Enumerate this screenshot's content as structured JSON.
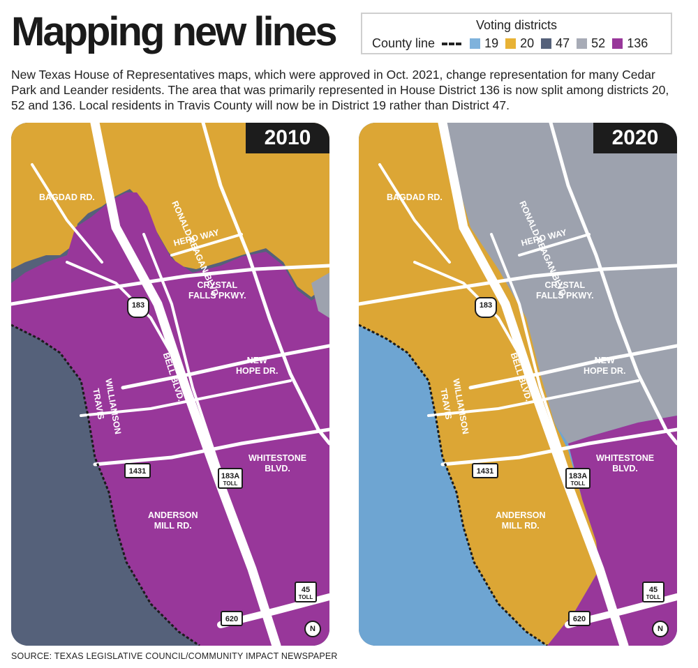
{
  "title": "Mapping new lines",
  "intro": "New Texas House of Representatives maps, which were approved in Oct. 2021, change representation for many Cedar Park and Leander residents. The area that was primarily represented in House District 136 is now split among districts 20, 52 and 136. Local residents in Travis County will now be in District 19 rather than District 47.",
  "legend": {
    "title": "Voting districts",
    "county_line_label": "County line",
    "districts": [
      {
        "label": "19",
        "color": "#7fb2dc"
      },
      {
        "label": "20",
        "color": "#e8b235"
      },
      {
        "label": "47",
        "color": "#55617a"
      },
      {
        "label": "52",
        "color": "#a7abb6"
      },
      {
        "label": "136",
        "color": "#98379a"
      }
    ]
  },
  "colors": {
    "d19": "#6ea5d2",
    "d20": "#dca635",
    "d47": "#55617a",
    "d52": "#9da2ae",
    "d136": "#98379a",
    "road": "#ffffff",
    "county_line": "#1a1a1a"
  },
  "maps": [
    {
      "year": "2010",
      "labels": {
        "bagdad": "BAGDAD RD.",
        "ronald": "RONALD REAGAN BLVD.",
        "hero": "HERO WAY",
        "crystal": "CRYSTAL\nFALLS PKWY.",
        "new_hope": "NEW\nHOPE DR.",
        "whitestone": "WHITESTONE\nBLVD.",
        "anderson": "ANDERSON\nMILL RD.",
        "bell": "BELL BLVD.",
        "williamson": "WILLIAMSON",
        "travis": "TRAVIS"
      },
      "shields": {
        "r183": "183",
        "r1431": "1431",
        "r183a": "183A",
        "r183a_sub": "TOLL",
        "r45": "45",
        "r45_sub": "TOLL",
        "r620": "620"
      },
      "north": "N"
    },
    {
      "year": "2020",
      "labels": {
        "bagdad": "BAGDAD RD.",
        "ronald": "RONALD REAGAN BLVD.",
        "hero": "HERO WAY",
        "crystal": "CRYSTAL\nFALLS PKWY.",
        "new_hope": "NEW\nHOPE DR.",
        "whitestone": "WHITESTONE\nBLVD.",
        "anderson": "ANDERSON\nMILL RD.",
        "bell": "BELL BLVD.",
        "williamson": "WILLIAMSON",
        "travis": "TRAVIS"
      },
      "shields": {
        "r183": "183",
        "r1431": "1431",
        "r183a": "183A",
        "r183a_sub": "TOLL",
        "r45": "45",
        "r45_sub": "TOLL",
        "r620": "620"
      },
      "north": "N"
    }
  ],
  "source": "SOURCE: TEXAS LEGISLATIVE COUNCIL/COMMUNITY IMPACT NEWSPAPER"
}
